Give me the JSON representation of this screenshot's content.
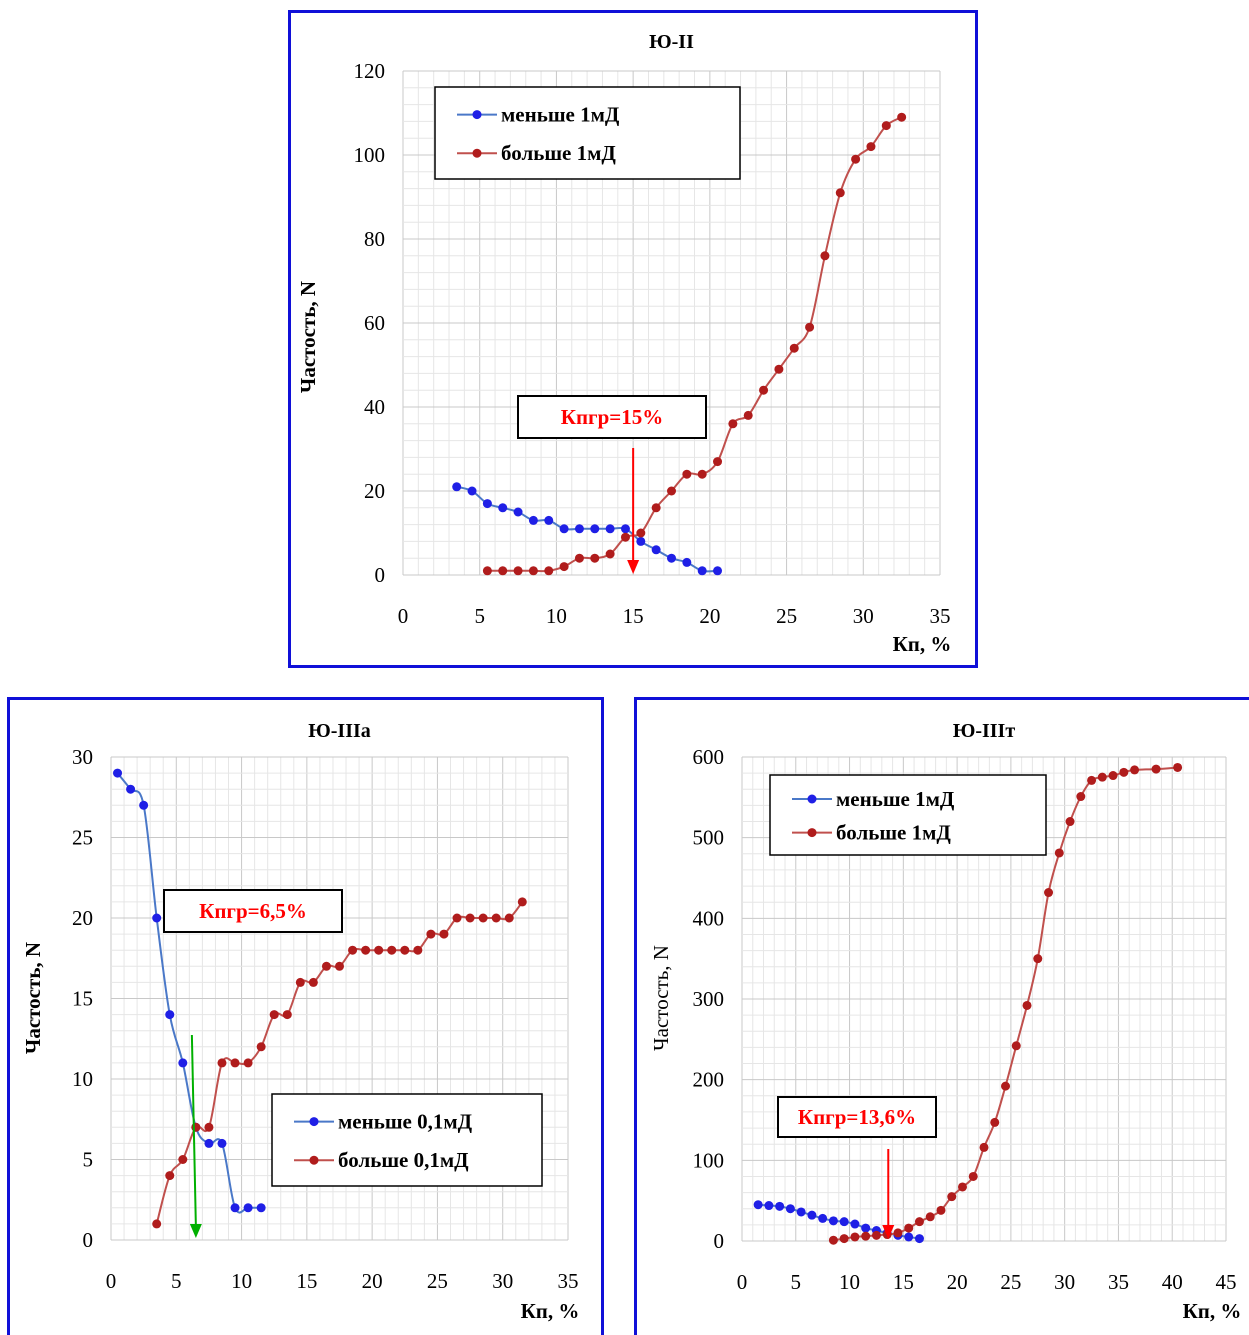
{
  "colors": {
    "series_less": "#1f1fe6",
    "series_less_line": "#4a78c8",
    "series_more": "#b01c1c",
    "series_more_line": "#c0504d",
    "annotation_text": "#ff0000",
    "arrow_red": "#ff0000",
    "arrow_green": "#00b000",
    "frame": "#1010d8",
    "grid": "#d9d9d9"
  },
  "chart_data": [
    {
      "type": "line",
      "title": "Ю-II",
      "xlabel": "Кп, %",
      "ylabel": "Частость, N",
      "xlim": [
        0,
        35
      ],
      "ylim": [
        0,
        120
      ],
      "xticks": [
        "0",
        "5",
        "10",
        "15",
        "20",
        "25",
        "30",
        "35"
      ],
      "yticks": [
        "0",
        "20",
        "40",
        "60",
        "80",
        "100",
        "120"
      ],
      "grid": true,
      "legend_position": "top-left",
      "annotation": {
        "text": "Кпгр=15%",
        "x": 15
      },
      "series": [
        {
          "name": "меньше 1мД",
          "x": [
            3.5,
            4.5,
            5.5,
            6.5,
            7.5,
            8.5,
            9.5,
            10.5,
            11.5,
            12.5,
            13.5,
            14.5,
            15.5,
            16.5,
            17.5,
            18.5,
            19.5,
            20.5
          ],
          "y": [
            21,
            20,
            17,
            16,
            15,
            13,
            13,
            11,
            11,
            11,
            11,
            11,
            8,
            6,
            4,
            3,
            1,
            1
          ]
        },
        {
          "name": "больше 1мД",
          "x": [
            5.5,
            6.5,
            7.5,
            8.5,
            9.5,
            10.5,
            11.5,
            12.5,
            13.5,
            14.5,
            15.5,
            16.5,
            17.5,
            18.5,
            19.5,
            20.5,
            21.5,
            22.5,
            23.5,
            24.5,
            25.5,
            26.5,
            27.5,
            28.5,
            29.5,
            30.5,
            31.5,
            32.5
          ],
          "y": [
            1,
            1,
            1,
            1,
            1,
            2,
            4,
            4,
            5,
            9,
            10,
            16,
            20,
            24,
            24,
            27,
            36,
            38,
            44,
            49,
            54,
            59,
            76,
            91,
            99,
            102,
            107,
            109
          ]
        }
      ]
    },
    {
      "type": "line",
      "title": "Ю-IIIа",
      "xlabel": "Кп, %",
      "ylabel": "Частость, N",
      "xlim": [
        0,
        35
      ],
      "ylim": [
        0,
        30
      ],
      "xticks": [
        "0",
        "5",
        "10",
        "15",
        "20",
        "25",
        "30",
        "35"
      ],
      "yticks": [
        "0",
        "5",
        "10",
        "15",
        "20",
        "25",
        "30"
      ],
      "grid": true,
      "legend_position": "bottom-right",
      "annotation": {
        "text": "Кпгр=6,5%",
        "x": 6.5
      },
      "series": [
        {
          "name": "меньше 0,1мД",
          "x": [
            0.5,
            1.5,
            2.5,
            3.5,
            4.5,
            5.5,
            6.5,
            7.5,
            8.5,
            9.5,
            10.5,
            11.5
          ],
          "y": [
            29,
            28,
            27,
            20,
            14,
            11,
            7,
            6,
            6,
            2,
            2,
            2
          ]
        },
        {
          "name": "больше 0,1мД",
          "x": [
            3.5,
            4.5,
            5.5,
            6.5,
            7.5,
            8.5,
            9.5,
            10.5,
            11.5,
            12.5,
            13.5,
            14.5,
            15.5,
            16.5,
            17.5,
            18.5,
            19.5,
            20.5,
            21.5,
            22.5,
            23.5,
            24.5,
            25.5,
            26.5,
            27.5,
            28.5,
            29.5,
            30.5,
            31.5
          ],
          "y": [
            1,
            4,
            5,
            7,
            7,
            11,
            11,
            11,
            12,
            14,
            14,
            16,
            16,
            17,
            17,
            18,
            18,
            18,
            18,
            18,
            18,
            19,
            19,
            20,
            20,
            20,
            20,
            20,
            21
          ]
        }
      ]
    },
    {
      "type": "line",
      "title": "Ю-IIIт",
      "xlabel": "Кп, %",
      "ylabel": "Частость, N",
      "xlim": [
        0,
        45
      ],
      "ylim": [
        0,
        600
      ],
      "xticks": [
        "0",
        "5",
        "10",
        "15",
        "20",
        "25",
        "30",
        "35",
        "40",
        "45"
      ],
      "yticks": [
        "0",
        "100",
        "200",
        "300",
        "400",
        "500",
        "600"
      ],
      "grid": true,
      "legend_position": "top-left",
      "annotation": {
        "text": "Кпгр=13,6%",
        "x": 13.6
      },
      "series": [
        {
          "name": "меньше 1мД",
          "x": [
            1.5,
            2.5,
            3.5,
            4.5,
            5.5,
            6.5,
            7.5,
            8.5,
            9.5,
            10.5,
            11.5,
            12.5,
            13.5,
            14.5,
            15.5,
            16.5
          ],
          "y": [
            45,
            44,
            43,
            40,
            36,
            32,
            28,
            25,
            24,
            21,
            16,
            13,
            10,
            7,
            5,
            3
          ]
        },
        {
          "name": "больше 1мД",
          "x": [
            8.5,
            9.5,
            10.5,
            11.5,
            12.5,
            13.5,
            14.5,
            15.5,
            16.5,
            17.5,
            18.5,
            19.5,
            20.5,
            21.5,
            22.5,
            23.5,
            24.5,
            25.5,
            26.5,
            27.5,
            28.5,
            29.5,
            30.5,
            31.5,
            32.5,
            33.5,
            34.5,
            35.5,
            36.5,
            38.5,
            40.5
          ],
          "y": [
            1,
            3,
            5,
            6,
            7,
            8,
            10,
            16,
            24,
            30,
            38,
            55,
            67,
            80,
            116,
            147,
            192,
            242,
            292,
            350,
            432,
            481,
            520,
            551,
            571,
            575,
            577,
            581,
            584,
            585,
            587
          ]
        }
      ]
    }
  ]
}
